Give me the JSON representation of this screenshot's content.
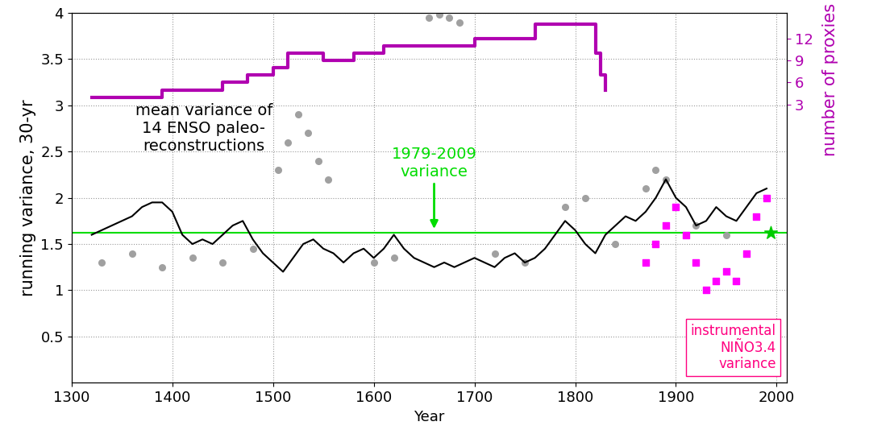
{
  "chart_data": {
    "type": "line",
    "xlabel": "Year",
    "ylabel": "running variance, 30-yr",
    "y2label": "number of proxies",
    "y2label_color": "#b000b0",
    "xlim": [
      1300,
      2010
    ],
    "xticks": [
      1300,
      1400,
      1500,
      1600,
      1700,
      1800,
      1900,
      2000
    ],
    "ylim": [
      0,
      4
    ],
    "yticks": [
      0.5,
      1,
      1.5,
      2,
      2.5,
      3,
      3.5,
      4
    ],
    "y2lim": [
      -35,
      15.5
    ],
    "y2ticks": [
      3,
      6,
      9,
      12
    ],
    "grid": true,
    "series": [
      {
        "type": "scatter",
        "color": "#a0a0a0",
        "marker": "circle",
        "x": [
          1330,
          1360,
          1390,
          1420,
          1450,
          1480,
          1505,
          1515,
          1525,
          1535,
          1545,
          1555,
          1600,
          1620,
          1655,
          1665,
          1675,
          1685,
          1720,
          1750,
          1790,
          1810,
          1840,
          1870,
          1880,
          1890,
          1920,
          1950
        ],
        "values": [
          1.3,
          1.4,
          1.25,
          1.35,
          1.3,
          1.45,
          2.3,
          2.6,
          2.9,
          2.7,
          2.4,
          2.2,
          1.3,
          1.35,
          3.95,
          3.98,
          3.95,
          3.9,
          1.4,
          1.3,
          1.9,
          2.0,
          1.5,
          2.1,
          2.3,
          2.2,
          1.7,
          1.6
        ]
      },
      {
        "type": "line",
        "color": "#000000",
        "line_style": "solid",
        "x": [
          1320,
          1330,
          1340,
          1350,
          1360,
          1370,
          1380,
          1390,
          1400,
          1410,
          1420,
          1430,
          1440,
          1450,
          1460,
          1470,
          1480,
          1490,
          1500,
          1510,
          1520,
          1530,
          1540,
          1550,
          1560,
          1570,
          1580,
          1590,
          1600,
          1610,
          1620,
          1630,
          1640,
          1650,
          1660,
          1670,
          1680,
          1690,
          1700,
          1710,
          1720,
          1730,
          1740,
          1750,
          1760,
          1770,
          1780,
          1790,
          1800,
          1810,
          1820,
          1830,
          1840,
          1850,
          1860,
          1870,
          1880,
          1890,
          1900,
          1910,
          1920,
          1930,
          1940,
          1950,
          1960,
          1970,
          1980,
          1990
        ],
        "values": [
          1.6,
          1.65,
          1.7,
          1.75,
          1.8,
          1.9,
          1.95,
          1.95,
          1.85,
          1.6,
          1.5,
          1.55,
          1.5,
          1.6,
          1.7,
          1.75,
          1.55,
          1.4,
          1.3,
          1.2,
          1.35,
          1.5,
          1.55,
          1.45,
          1.4,
          1.3,
          1.4,
          1.45,
          1.35,
          1.45,
          1.6,
          1.45,
          1.35,
          1.3,
          1.25,
          1.3,
          1.25,
          1.3,
          1.35,
          1.3,
          1.25,
          1.35,
          1.4,
          1.3,
          1.35,
          1.45,
          1.6,
          1.75,
          1.65,
          1.5,
          1.4,
          1.6,
          1.7,
          1.8,
          1.75,
          1.85,
          2.0,
          2.2,
          2.0,
          1.9,
          1.7,
          1.75,
          1.9,
          1.8,
          1.75,
          1.9,
          2.05,
          2.1
        ]
      },
      {
        "type": "scatter",
        "color": "#ff00ff",
        "marker": "square",
        "x": [
          1870,
          1880,
          1890,
          1900,
          1910,
          1920,
          1930,
          1940,
          1950,
          1960,
          1970,
          1980,
          1990
        ],
        "values": [
          1.3,
          1.5,
          1.7,
          1.9,
          1.6,
          1.3,
          1.0,
          1.1,
          1.2,
          1.1,
          1.4,
          1.8,
          2.0
        ]
      },
      {
        "type": "hline",
        "color": "#00dd00",
        "values": [
          1.62
        ]
      },
      {
        "type": "scatter",
        "color": "#00cc00",
        "marker": "star",
        "x": [
          1994
        ],
        "values": [
          1.62
        ]
      },
      {
        "type": "step",
        "color": "#b000b0",
        "axis": "y2",
        "line_style": "solid",
        "x": [
          1320,
          1390,
          1450,
          1475,
          1500,
          1515,
          1550,
          1580,
          1610,
          1700,
          1760,
          1815,
          1820,
          1825,
          1830
        ],
        "values": [
          4,
          5,
          6,
          7,
          8,
          10,
          9,
          10,
          11,
          12,
          14,
          14,
          10,
          7,
          5
        ]
      }
    ],
    "annotations": [
      {
        "text": "mean variance of\n14 ENSO paleo-\nreconstructions",
        "color": "#000000"
      },
      {
        "text": "1979-2009\nvariance",
        "color": "#00dd00"
      },
      {
        "text": "instrumental\nNIÑO3.4\nvariance",
        "color": "#ff0080"
      }
    ]
  }
}
